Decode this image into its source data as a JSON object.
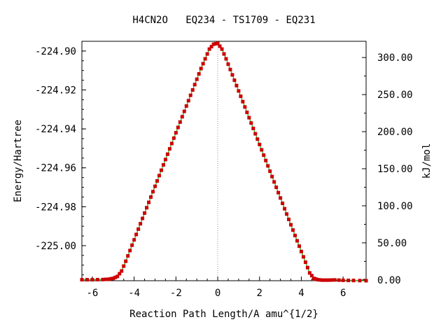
{
  "chart_data": {
    "type": "line",
    "title": "H4CN2O   EQ234 - TS1709 - EQ231",
    "xlabel": "Reaction Path Length/A amu^{1/2}",
    "ylabel": "Energy/Hartree",
    "y2label": "kJ/mol",
    "xlim": [
      -6.5,
      7.1
    ],
    "ylim": [
      -225.018,
      -224.895
    ],
    "y2lim": [
      0,
      320
    ],
    "x_ticks": [
      -6,
      -4,
      -2,
      0,
      2,
      4,
      6
    ],
    "y_ticks": [
      -225.0,
      -224.98,
      -224.96,
      -224.94,
      -224.92,
      -224.9
    ],
    "y_tick_labels": [
      "-225.00",
      "-224.98",
      "-224.96",
      "-224.94",
      "-224.92",
      "-224.90"
    ],
    "y2_ticks": [
      0,
      50,
      100,
      150,
      200,
      250,
      300
    ],
    "y2_tick_labels": [
      "0.00",
      "50.00",
      "100.00",
      "150.00",
      "200.00",
      "250.00",
      "300.00"
    ],
    "line_color": "#00a000",
    "marker_color": "#cc0000",
    "ts_marker": 0,
    "grid": false,
    "series": [
      {
        "x": [
          -6.5,
          -6.0,
          -5.5,
          -5.2,
          -5.0,
          -4.8,
          -4.6,
          -4.4,
          -4.2,
          -4.0,
          -3.8,
          -3.6,
          -3.4,
          -3.2,
          -3.0,
          -2.8,
          -2.6,
          -2.4,
          -2.2,
          -2.0,
          -1.8,
          -1.6,
          -1.4,
          -1.2,
          -1.0,
          -0.8,
          -0.6,
          -0.4,
          -0.2,
          0.0,
          0.2,
          0.4,
          0.6,
          0.8,
          1.0,
          1.2,
          1.4,
          1.6,
          1.8,
          2.0,
          2.2,
          2.4,
          2.6,
          2.8,
          3.0,
          3.2,
          3.4,
          3.6,
          3.8,
          4.0,
          4.2,
          4.4,
          4.6,
          4.8,
          5.0,
          5.3,
          5.6,
          6.0,
          6.5,
          7.1
        ],
        "y": [
          -225.0175,
          -225.0175,
          -225.0174,
          -225.0172,
          -225.0168,
          -225.0158,
          -225.013,
          -225.008,
          -225.0025,
          -224.997,
          -224.9915,
          -224.986,
          -224.9805,
          -224.975,
          -224.9695,
          -224.964,
          -224.9585,
          -224.953,
          -224.9475,
          -224.942,
          -224.9365,
          -224.931,
          -224.9255,
          -224.92,
          -224.9145,
          -224.909,
          -224.904,
          -224.899,
          -224.8965,
          -224.896,
          -224.899,
          -224.904,
          -224.9095,
          -224.915,
          -224.9205,
          -224.926,
          -224.9315,
          -224.937,
          -224.9425,
          -224.948,
          -224.9535,
          -224.959,
          -224.9645,
          -224.97,
          -224.9755,
          -224.981,
          -224.9865,
          -224.992,
          -224.9975,
          -225.003,
          -225.0085,
          -225.014,
          -225.0168,
          -225.0175,
          -225.0177,
          -225.0177,
          -225.0176,
          -225.0178,
          -225.0179,
          -225.018
        ]
      }
    ]
  }
}
